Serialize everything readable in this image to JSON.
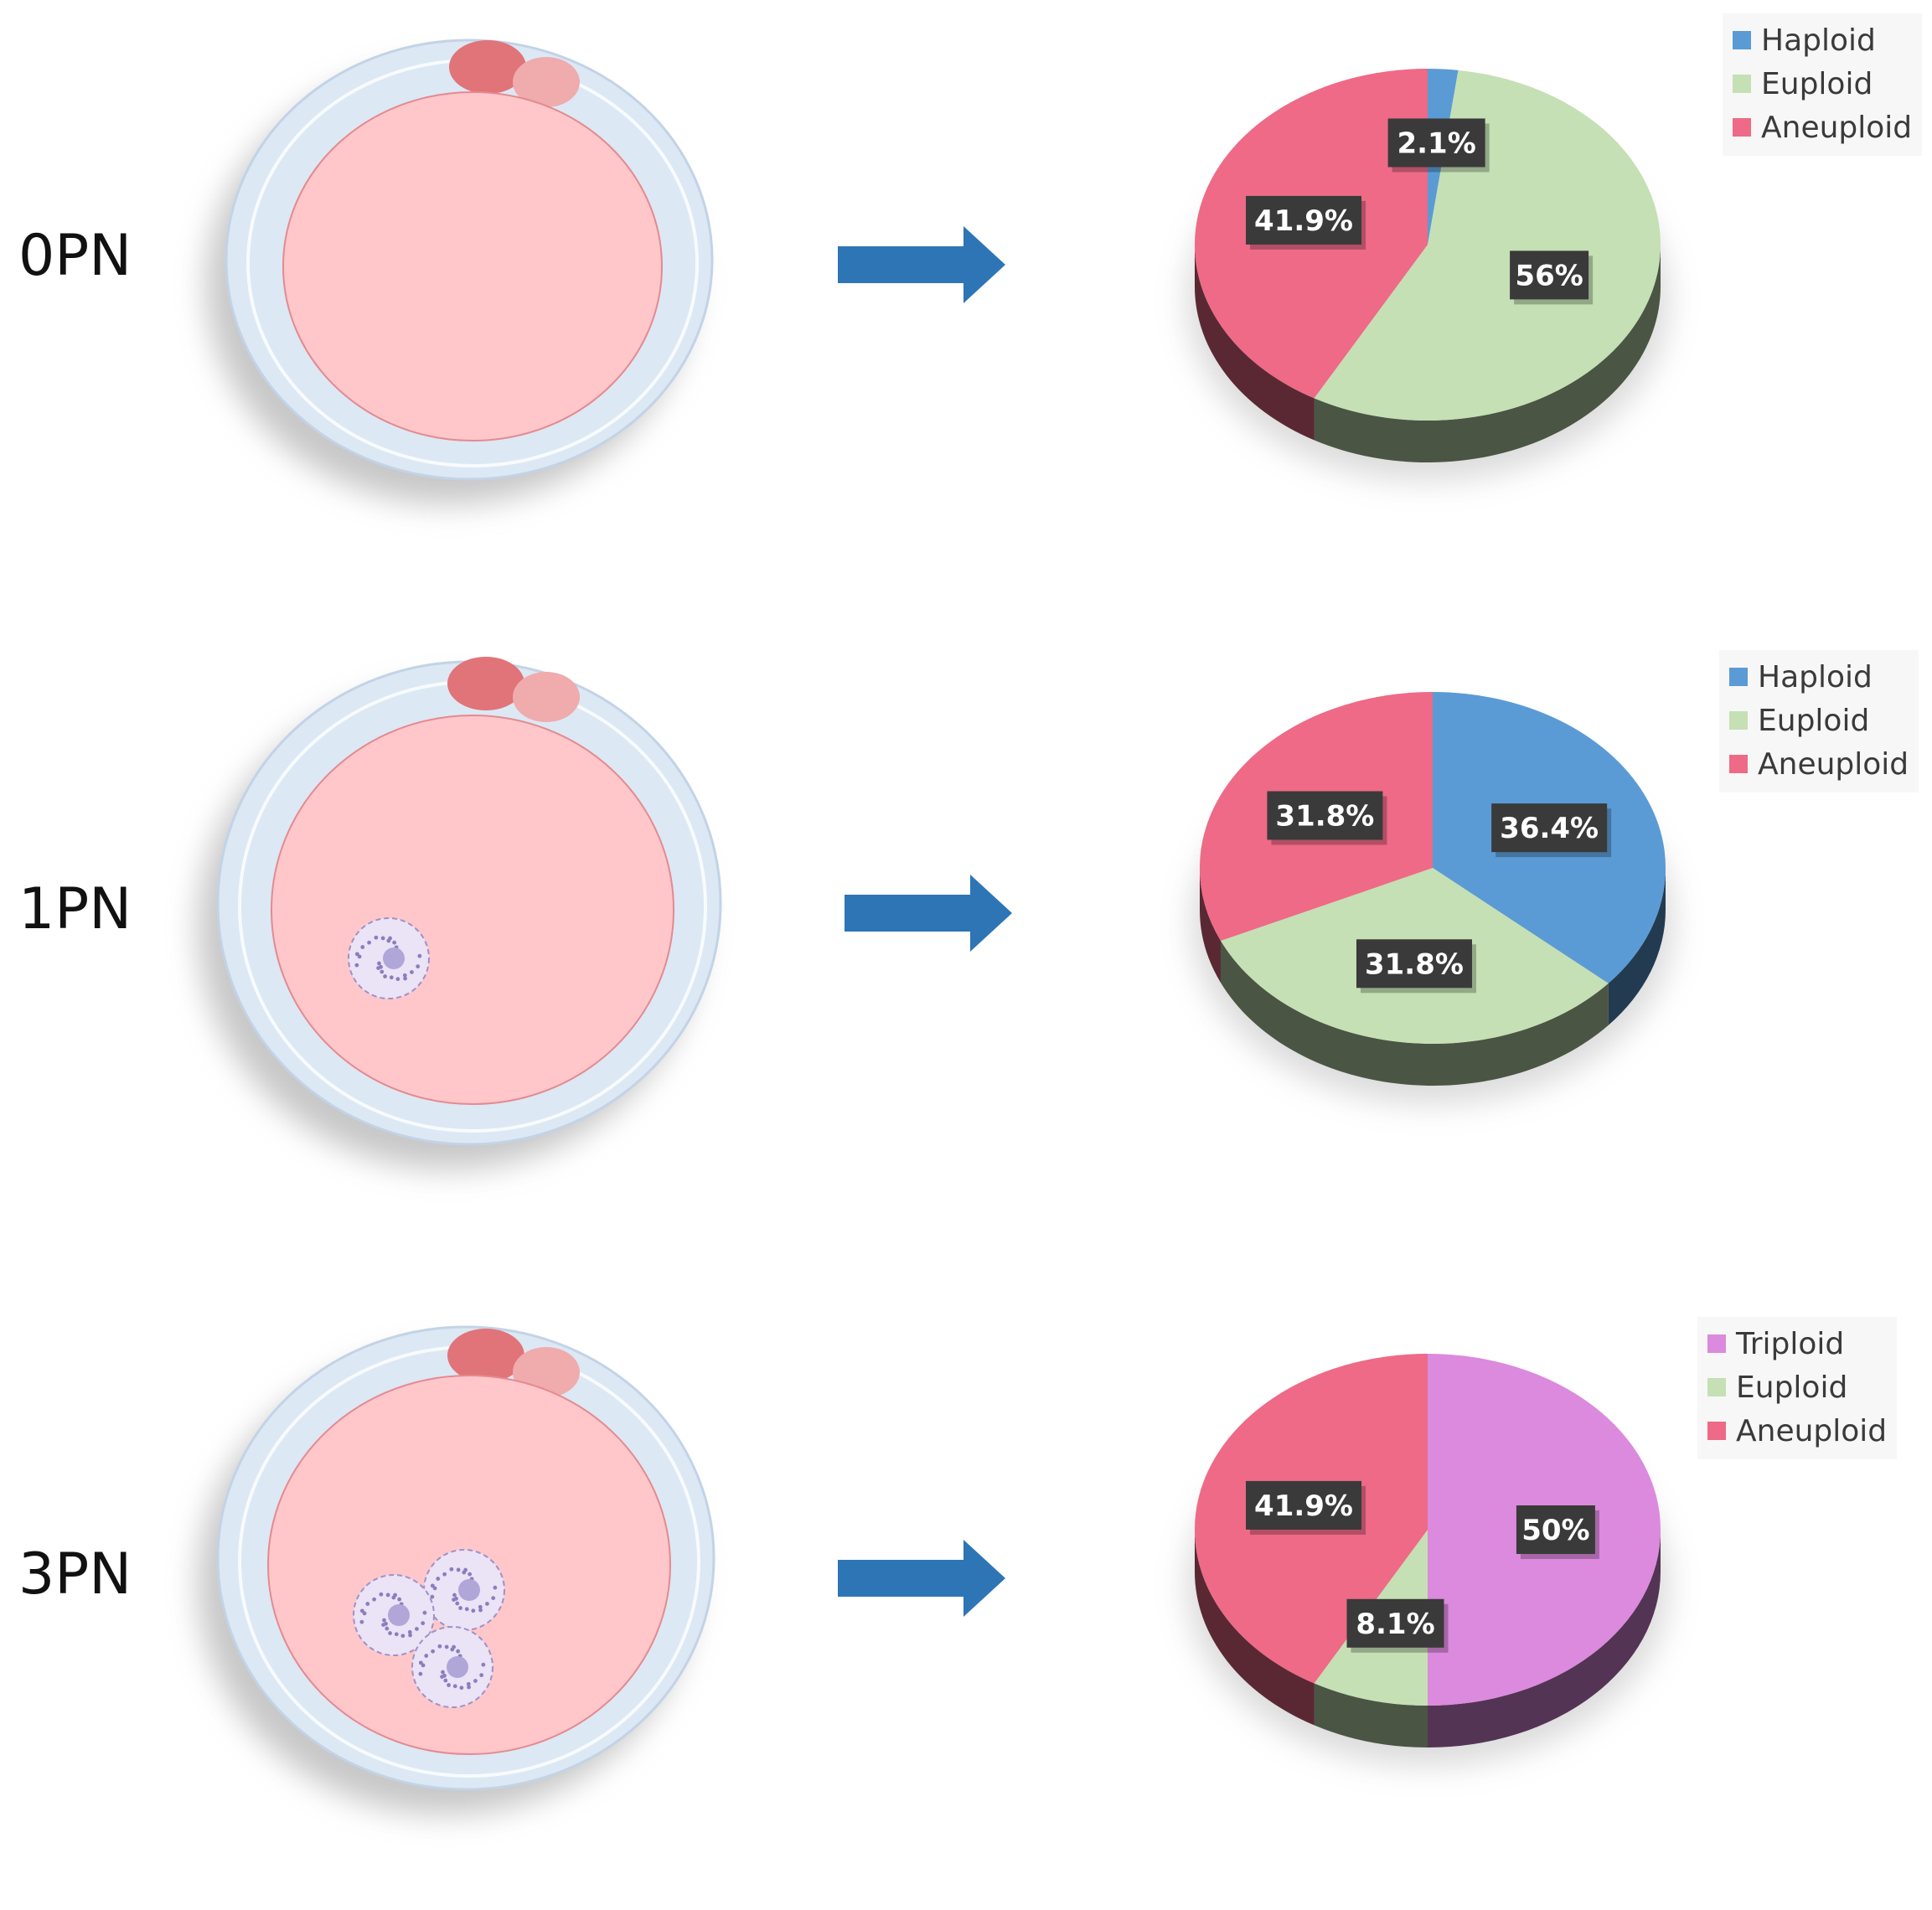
{
  "colors": {
    "Haploid": "#5b9bd5",
    "Euploid": "#c5e0b4",
    "Aneuploid": "#ee6a86",
    "Triploid": "#dc8add",
    "arrow": "#2e75b6",
    "cell_pink": "#ffc7ca",
    "zona": "#dce8f4"
  },
  "chart_data": [
    {
      "type": "pie",
      "stage": "0PN",
      "nuclei": 0,
      "legend": [
        "Haploid",
        "Euploid",
        "Aneuploid"
      ],
      "slices": [
        {
          "name": "Haploid",
          "value": 2.1,
          "label": "2.1%"
        },
        {
          "name": "Euploid",
          "value": 56,
          "label": "56%"
        },
        {
          "name": "Aneuploid",
          "value": 41.9,
          "label": "41.9%"
        }
      ]
    },
    {
      "type": "pie",
      "stage": "1PN",
      "nuclei": 1,
      "legend": [
        "Haploid",
        "Euploid",
        "Aneuploid"
      ],
      "slices": [
        {
          "name": "Haploid",
          "value": 36.4,
          "label": "36.4%"
        },
        {
          "name": "Euploid",
          "value": 31.8,
          "label": "31.8%"
        },
        {
          "name": "Aneuploid",
          "value": 31.8,
          "label": "31.8%"
        }
      ]
    },
    {
      "type": "pie",
      "stage": "3PN",
      "nuclei": 3,
      "legend": [
        "Triploid",
        "Euploid",
        "Aneuploid"
      ],
      "slices": [
        {
          "name": "Triploid",
          "value": 50,
          "label": "50%"
        },
        {
          "name": "Euploid",
          "value": 8.1,
          "label": "8.1%"
        },
        {
          "name": "Aneuploid",
          "value": 41.9,
          "label": "41.9%"
        }
      ]
    }
  ]
}
